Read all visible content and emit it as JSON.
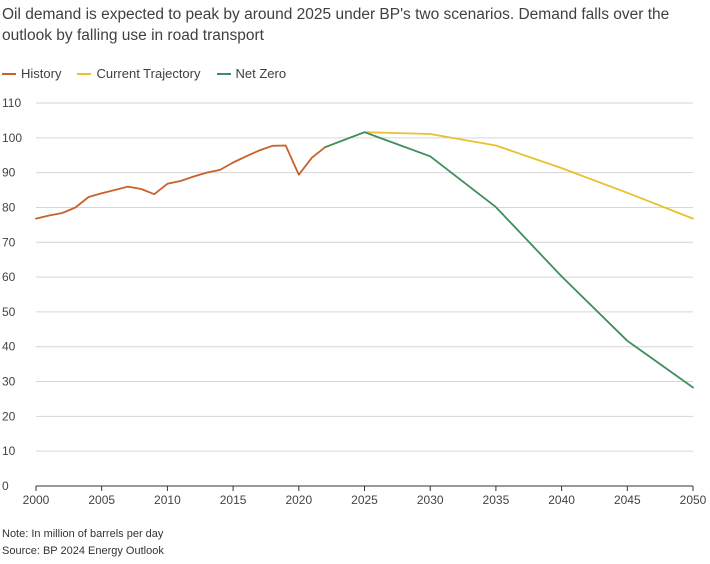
{
  "subtitle": "Oil demand is expected to peak by around 2025 under BP's two scenarios. Demand falls over the outlook by falling use in road transport",
  "note": "Note: In million of barrels per day",
  "source": "Source: BP 2024 Energy Outlook",
  "colors": {
    "history": "#c8612a",
    "current": "#e8c12e",
    "netzero": "#3e8e5e",
    "grid": "#d6d6d6",
    "axis": "#333333"
  },
  "chart_data": {
    "type": "line",
    "title": "",
    "xlabel": "",
    "ylabel": "",
    "xlim": [
      2000,
      2050
    ],
    "ylim": [
      0,
      110
    ],
    "xticks": [
      2000,
      2005,
      2010,
      2015,
      2020,
      2025,
      2030,
      2035,
      2040,
      2045,
      2050
    ],
    "yticks": [
      0,
      10,
      20,
      30,
      40,
      50,
      60,
      70,
      80,
      90,
      100,
      110
    ],
    "grid": "horizontal",
    "legend": "top-left",
    "series": [
      {
        "name": "History",
        "color": "#c8612a",
        "x": [
          2000,
          2001,
          2002,
          2003,
          2004,
          2005,
          2006,
          2007,
          2008,
          2009,
          2010,
          2011,
          2012,
          2013,
          2014,
          2015,
          2016,
          2017,
          2018,
          2019,
          2020,
          2021,
          2022
        ],
        "y": [
          76.8,
          77.7,
          78.4,
          80.0,
          83.0,
          84.1,
          85.0,
          86.0,
          85.3,
          83.8,
          86.8,
          87.6,
          88.9,
          90.0,
          90.8,
          92.9,
          94.7,
          96.4,
          97.7,
          97.8,
          89.4,
          94.3,
          97.3
        ]
      },
      {
        "name": "Current Trajectory",
        "color": "#e8c12e",
        "x": [
          2022,
          2025,
          2030,
          2035,
          2040,
          2045,
          2050
        ],
        "y": [
          97.3,
          101.6,
          101.1,
          97.8,
          91.3,
          84.2,
          76.8
        ]
      },
      {
        "name": "Net Zero",
        "color": "#3e8e5e",
        "x": [
          2022,
          2025,
          2030,
          2035,
          2040,
          2045,
          2050
        ],
        "y": [
          97.3,
          101.6,
          94.7,
          80.1,
          60.2,
          41.7,
          28.3
        ]
      }
    ]
  }
}
